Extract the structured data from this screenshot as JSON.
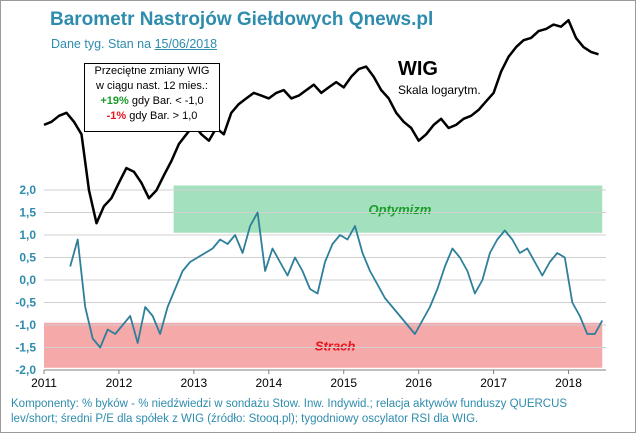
{
  "header": {
    "title": "Barometr Nastrojów Giełdowych Qnews.pl",
    "subtitle_prefix": "Dane tyg. Stan na",
    "subtitle_date": "15/06/2018"
  },
  "infobox": {
    "line1": "Przeciętne zmiany WIG",
    "line2": "w ciągu nast. 12 mies.:",
    "pos_value": "+19%",
    "pos_text": "gdy Bar. < -1,0",
    "neg_value": "-1%",
    "neg_text": "gdy Bar. > 1,0"
  },
  "footer": {
    "line1": "Komponenty: % byków - % niedźwiedzi w sondażu Stow. Inw. Indywid.; relacja aktywów funduszy QUERCUS",
    "line2": "lev/short; średni P/E dla spółek z WIG (źródło: Stooq.pl); tygodniowy oscylator RSI dla WIG."
  },
  "colors": {
    "title": "#2e8cad",
    "barometer_line": "#2e7f9a",
    "wig_line": "#000000",
    "optimism_band": "#a3e0bd",
    "fear_band": "#f5a9a9",
    "optimism_label": "#1a9c2a",
    "fear_label": "#e8141e"
  },
  "chart_data": {
    "type": "line",
    "title": "Barometr Nastrojów Giełdowych Qnews.pl",
    "xlim": [
      2011,
      2018.5
    ],
    "x_ticks": [
      "2011",
      "2012",
      "2013",
      "2014",
      "2015",
      "2016",
      "2017",
      "2018"
    ],
    "ylim": [
      -2.0,
      2.0
    ],
    "y_ticks": [
      "2,0",
      "1,5",
      "1,0",
      "0,5",
      "0,0",
      "-0,5",
      "-1,0",
      "-1,5",
      "-2,0"
    ],
    "grid": true,
    "bands": [
      {
        "label": "Optymizm",
        "y_from": 1.05,
        "y_to": 2.1,
        "x_from": 2012.73,
        "x_to": 2018.45
      },
      {
        "label": "Strach",
        "y_from": -1.95,
        "y_to": -0.95,
        "x_from": 2011.0,
        "x_to": 2018.45
      }
    ],
    "series": [
      {
        "name": "WIG",
        "axis": "secondary",
        "note": "Skala logarytm.",
        "x": [
          2011.0,
          2011.1,
          2011.2,
          2011.3,
          2011.4,
          2011.5,
          2011.6,
          2011.7,
          2011.8,
          2011.9,
          2012.0,
          2012.1,
          2012.2,
          2012.3,
          2012.4,
          2012.5,
          2012.6,
          2012.7,
          2012.8,
          2012.9,
          2013.0,
          2013.1,
          2013.2,
          2013.3,
          2013.4,
          2013.5,
          2013.6,
          2013.7,
          2013.8,
          2013.9,
          2014.0,
          2014.1,
          2014.2,
          2014.3,
          2014.4,
          2014.5,
          2014.6,
          2014.7,
          2014.8,
          2014.9,
          2015.0,
          2015.1,
          2015.2,
          2015.3,
          2015.4,
          2015.5,
          2015.6,
          2015.7,
          2015.8,
          2015.9,
          2016.0,
          2016.1,
          2016.2,
          2016.3,
          2016.4,
          2016.5,
          2016.6,
          2016.7,
          2016.8,
          2016.9,
          2017.0,
          2017.1,
          2017.2,
          2017.3,
          2017.4,
          2017.5,
          2017.6,
          2017.7,
          2017.8,
          2017.9,
          2018.0,
          2018.1,
          2018.2,
          2018.3,
          2018.4
        ],
        "values": [
          46500,
          47000,
          48000,
          48500,
          47000,
          45000,
          37000,
          33000,
          35000,
          36000,
          38000,
          40000,
          39500,
          38000,
          36000,
          37000,
          39000,
          41000,
          43500,
          45000,
          46500,
          45000,
          44000,
          46000,
          45000,
          48500,
          50000,
          51000,
          52000,
          51500,
          51000,
          52000,
          52500,
          51000,
          51500,
          52500,
          53500,
          52000,
          53000,
          54000,
          53000,
          55000,
          56500,
          57000,
          55000,
          52500,
          51000,
          48500,
          47000,
          46000,
          44000,
          45000,
          46500,
          47500,
          46000,
          46500,
          47500,
          48000,
          49000,
          50500,
          52000,
          56000,
          59000,
          61000,
          62500,
          63000,
          64500,
          65000,
          66000,
          65500,
          67000,
          63000,
          61000,
          60000,
          59500
        ]
      },
      {
        "name": "Barometr",
        "axis": "primary",
        "x": [
          2011.35,
          2011.45,
          2011.55,
          2011.65,
          2011.75,
          2011.85,
          2011.95,
          2012.05,
          2012.15,
          2012.25,
          2012.35,
          2012.45,
          2012.55,
          2012.65,
          2012.75,
          2012.85,
          2012.95,
          2013.05,
          2013.15,
          2013.25,
          2013.35,
          2013.45,
          2013.55,
          2013.65,
          2013.75,
          2013.85,
          2013.95,
          2014.05,
          2014.15,
          2014.25,
          2014.35,
          2014.45,
          2014.55,
          2014.65,
          2014.75,
          2014.85,
          2014.95,
          2015.05,
          2015.15,
          2015.25,
          2015.35,
          2015.45,
          2015.55,
          2015.65,
          2015.75,
          2015.85,
          2015.95,
          2016.05,
          2016.15,
          2016.25,
          2016.35,
          2016.45,
          2016.55,
          2016.65,
          2016.75,
          2016.85,
          2016.95,
          2017.05,
          2017.15,
          2017.25,
          2017.35,
          2017.45,
          2017.55,
          2017.65,
          2017.75,
          2017.85,
          2017.95,
          2018.05,
          2018.15,
          2018.25,
          2018.35,
          2018.45
        ],
        "values": [
          0.3,
          0.9,
          -0.6,
          -1.3,
          -1.5,
          -1.1,
          -1.2,
          -1.0,
          -0.8,
          -1.4,
          -0.6,
          -0.8,
          -1.2,
          -0.6,
          -0.2,
          0.2,
          0.4,
          0.5,
          0.6,
          0.7,
          0.9,
          0.8,
          1.0,
          0.6,
          1.2,
          1.5,
          0.2,
          0.7,
          0.4,
          0.1,
          0.5,
          0.2,
          -0.2,
          -0.3,
          0.4,
          0.8,
          1.0,
          0.9,
          1.2,
          0.6,
          0.2,
          -0.1,
          -0.4,
          -0.6,
          -0.8,
          -1.0,
          -1.2,
          -0.9,
          -0.6,
          -0.2,
          0.3,
          0.7,
          0.5,
          0.2,
          -0.3,
          0.0,
          0.6,
          0.9,
          1.1,
          0.9,
          0.6,
          0.7,
          0.4,
          0.1,
          0.4,
          0.6,
          0.5,
          -0.5,
          -0.8,
          -1.2,
          -1.2,
          -0.9
        ]
      }
    ]
  }
}
